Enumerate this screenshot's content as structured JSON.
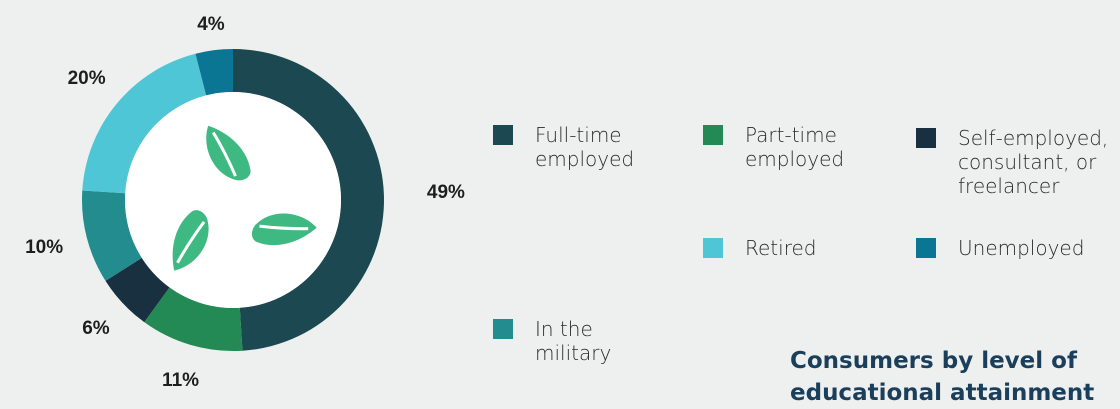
{
  "chart_data": {
    "type": "pie",
    "title": "",
    "slices": [
      {
        "name": "Full-time employed",
        "value": 49,
        "label": "49%",
        "color": "#1c4851"
      },
      {
        "name": "Part-time employed",
        "value": 11,
        "label": "11%",
        "color": "#238a55"
      },
      {
        "name": "Self-employed, consultant, or freelancer",
        "value": 6,
        "label": "6%",
        "color": "#18303f"
      },
      {
        "name": "In the military",
        "value": 10,
        "label": "10%",
        "color": "#228c8e"
      },
      {
        "name": "Retired",
        "value": 20,
        "label": "20%",
        "color": "#4fc6d6"
      },
      {
        "name": "Unemployed",
        "value": 4,
        "label": "4%",
        "color": "#0a7693"
      }
    ],
    "legend_placement": "right",
    "center_icon": "recycle-leaves-icon",
    "center_icon_color": "#3fb982"
  },
  "legend": [
    {
      "label": "Full-time\nemployed",
      "color": "#1c4851"
    },
    {
      "label": "Part-time\nemployed",
      "color": "#238a55"
    },
    {
      "label": "Self-employed,\nconsultant, or\nfreelancer",
      "color": "#18303f"
    },
    {
      "label": "In the\nmilitary",
      "color": "#228c8e"
    },
    {
      "label": "Retired",
      "color": "#4fc6d6"
    },
    {
      "label": "Unemployed",
      "color": "#0a7693"
    }
  ],
  "bottom_heading": "Consumers by level of educational attainment"
}
